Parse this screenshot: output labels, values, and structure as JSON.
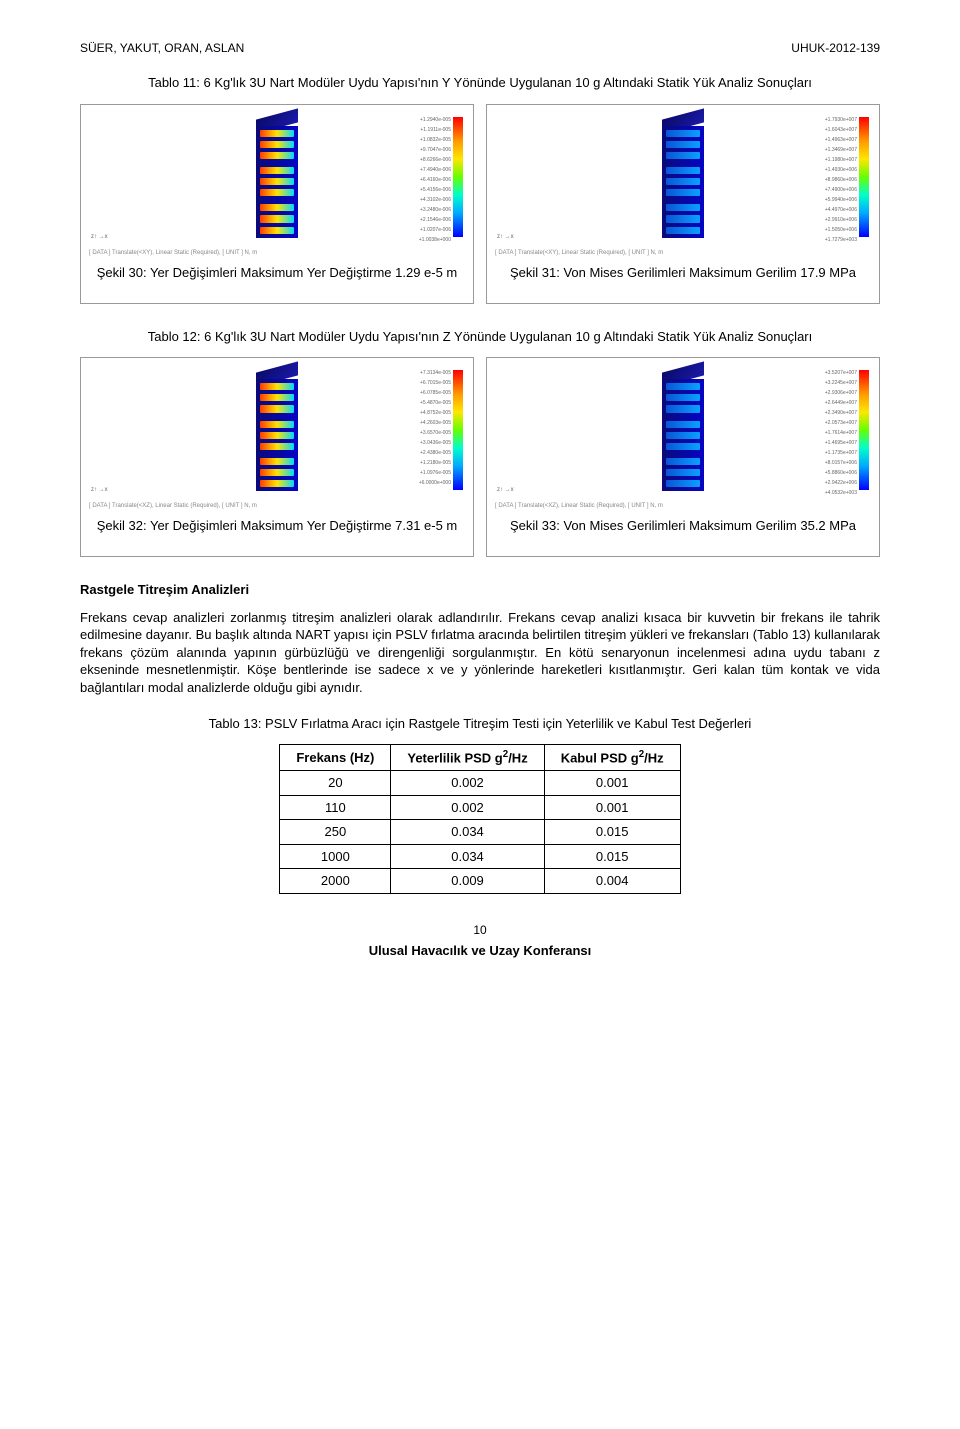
{
  "header": {
    "authors": "SÜER, YAKUT, ORAN, ASLAN",
    "paperId": "UHUK-2012-139"
  },
  "table11": {
    "title": "Tablo 11: 6 Kg'lık 3U Nart Modüler Uydu Yapısı'nın Y Yönünde Uygulanan 10 g Altındaki Statik Yük Analiz Sonuçları",
    "leftCaption": "Şekil 30: Yer Değişimleri Maksimum Yer Değiştirme 1.29 e-5 m",
    "rightCaption": "Şekil 31: Von Mises Gerilimleri Maksimum Gerilim 17.9 MPa",
    "leftMeta": "[ DATA ] Translate(<XY), Linear Static (Required), [ UNIT ] N, m",
    "rightMeta": "[ DATA ] Translate(<XY), Linear Static (Required), [ UNIT ] N, m",
    "legendTicks": [
      "+1.2940e-005",
      "+1.1911e-005",
      "+1.0832e-005",
      "+9.7047e-006",
      "+8.6266e-006",
      "+7.4940e-006",
      "+6.4160e-006",
      "+5.4156e-006",
      "+4.3102e-006",
      "+3.2480e-006",
      "+2.1546e-006",
      "+1.0207e-006",
      "+1.0038e+000"
    ],
    "legendTicks2": [
      "+1.7930e+007",
      "+1.6043e+007",
      "+1.4963e+007",
      "+1.3469e+007",
      "+1.1980e+007",
      "+1.4930e+006",
      "+8.9860e+006",
      "+7.4900e+006",
      "+5.9940e+006",
      "+4.4970e+006",
      "+2.9910e+006",
      "+1.5050e+006",
      "+1.7279e+003"
    ]
  },
  "table12": {
    "title": "Tablo 12: 6 Kg'lık 3U Nart Modüler Uydu Yapısı'nın Z Yönünde Uygulanan 10 g Altındaki Statik Yük Analiz Sonuçları",
    "leftCaption": "Şekil 32: Yer Değişimleri Maksimum Yer Değiştirme 7.31 e-5 m",
    "rightCaption": "Şekil 33: Von Mises Gerilimleri Maksimum Gerilim 35.2 MPa",
    "leftMeta": "[ DATA ] Translate(<XZ), Linear Static (Required), [ UNIT ] N, m",
    "rightMeta": "[ DATA ] Translate(<XZ), Linear Static (Required), [ UNIT ] N, m",
    "legendTicks": [
      "+7.3134e-005",
      "+6.7015e-005",
      "+6.0785e-005",
      "+5.4870e-005",
      "+4.8752e-005",
      "+4.2603e-005",
      "+3.6570e-005",
      "+3.0436e-005",
      "+2.4380e-005",
      "+1.2180e-005",
      "+1.0976e-005",
      "+6.0000e+000"
    ],
    "legendTicks2": [
      "+3.5207e+007",
      "+3.2245e+007",
      "+2.9306e+007",
      "+2.6449e+007",
      "+2.3490e+007",
      "+2.0573e+007",
      "+1.7614e+007",
      "+1.4695e+007",
      "+1.1735e+007",
      "+8.0157e+006",
      "+5.8860e+006",
      "+2.9422e+006",
      "+4.0532e+003"
    ]
  },
  "section": {
    "heading": "Rastgele Titreşim Analizleri",
    "paragraph": "Frekans cevap analizleri zorlanmış titreşim analizleri olarak adlandırılır. Frekans cevap analizi kısaca bir kuvvetin bir frekans ile tahrik edilmesine dayanır. Bu başlık altında NART yapısı için PSLV fırlatma aracında belirtilen titreşim yükleri ve frekansları (Tablo 13) kullanılarak frekans çözüm alanında yapının gürbüzlüğü ve direngenliği sorgulanmıştır. En kötü senaryonun incelenmesi adına uydu tabanı z ekseninde mesnetlenmiştir. Köşe bentlerinde ise sadece x ve y yönlerinde hareketleri kısıtlanmıştır. Geri kalan tüm kontak ve vida bağlantıları modal analizlerde olduğu gibi aynıdır."
  },
  "table13": {
    "title": "Tablo 13: PSLV Fırlatma Aracı için Rastgele Titreşim Testi için Yeterlilik ve Kabul Test Değerleri",
    "columns": [
      "Frekans (Hz)",
      "Yeterlilik PSD g²/Hz",
      "Kabul PSD g²/Hz"
    ],
    "rows": [
      [
        "20",
        "0.002",
        "0.001"
      ],
      [
        "110",
        "0.002",
        "0.001"
      ],
      [
        "250",
        "0.034",
        "0.015"
      ],
      [
        "1000",
        "0.034",
        "0.015"
      ],
      [
        "2000",
        "0.009",
        "0.004"
      ]
    ]
  },
  "footer": {
    "pageNumber": "10",
    "conference": "Ulusal Havacılık ve Uzay Konferansı"
  }
}
